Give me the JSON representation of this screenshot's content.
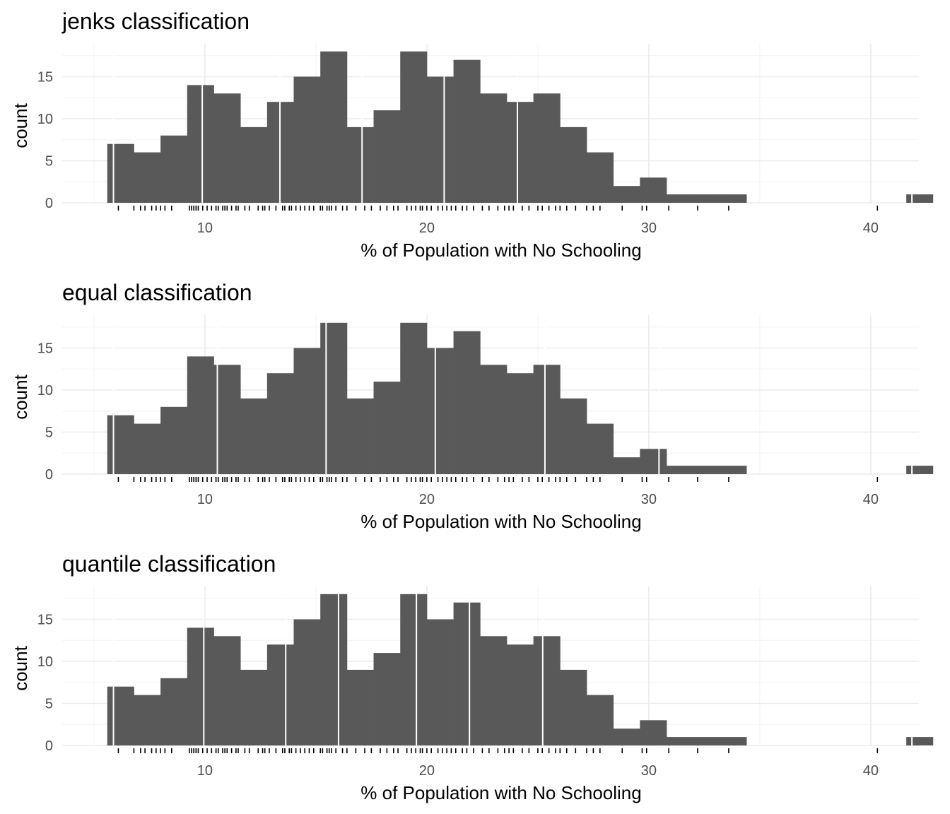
{
  "colors": {
    "bar_fill": "#595959",
    "break_line": "#ffffff",
    "grid_major": "#ebebeb",
    "grid_minor": "#f5f5f5",
    "rug": "#000000",
    "background": "#ffffff"
  },
  "chart_data": [
    {
      "type": "bar",
      "title": "jenks classification",
      "xlabel": "% of Population with No Schooling",
      "ylabel": "count",
      "xlim": [
        5.0,
        43.2
      ],
      "ylim": [
        0,
        18.3
      ],
      "xticks": [
        10,
        20,
        30,
        40
      ],
      "yticks": [
        0,
        5,
        10,
        15
      ],
      "x_tick_labels": [
        "10",
        "20",
        "30",
        "40"
      ],
      "y_tick_labels": [
        "0",
        "5",
        "10",
        "15"
      ],
      "grid": true,
      "legend": "none",
      "bin_width": 1.2,
      "bin_start": 5.6,
      "bin_counts": [
        7,
        6,
        8,
        14,
        13,
        9,
        12,
        15,
        18,
        9,
        11,
        18,
        15,
        17,
        13,
        12,
        13,
        9,
        6,
        2,
        3,
        1,
        1,
        1,
        0,
        0,
        0,
        0,
        0,
        0,
        1
      ],
      "first_bin_edge": 5.88,
      "class_breaks": [
        9.88,
        13.38,
        17.08,
        20.78,
        24.08
      ],
      "rug_ticks": [
        6.1,
        6.8,
        7.1,
        7.3,
        7.6,
        7.8,
        8.0,
        8.2,
        8.5,
        9.3,
        9.4,
        9.5,
        9.6,
        9.7,
        9.9,
        10.1,
        10.3,
        10.5,
        10.6,
        10.8,
        10.9,
        11.0,
        11.2,
        11.4,
        11.5,
        11.8,
        12.0,
        12.4,
        12.6,
        12.7,
        12.9,
        13.2,
        13.5,
        13.6,
        13.8,
        13.9,
        14.1,
        14.3,
        14.5,
        14.7,
        14.9,
        15.2,
        15.3,
        15.5,
        15.6,
        15.7,
        15.9,
        16.2,
        16.4,
        16.8,
        17.2,
        17.5,
        17.9,
        18.2,
        18.5,
        18.7,
        19.1,
        19.3,
        19.5,
        19.7,
        19.8,
        20.0,
        20.2,
        20.5,
        20.7,
        20.9,
        21.1,
        21.3,
        21.6,
        21.8,
        22.1,
        22.5,
        22.8,
        23.2,
        23.5,
        23.7,
        23.9,
        24.3,
        24.6,
        25.0,
        25.2,
        25.5,
        25.8,
        26.0,
        26.3,
        26.7,
        27.2,
        27.5,
        27.8,
        28.8,
        29.7,
        29.9,
        30.9,
        32.2,
        33.6,
        40.3
      ]
    },
    {
      "type": "bar",
      "title": "equal classification",
      "xlabel": "% of Population with No Schooling",
      "ylabel": "count",
      "xlim": [
        5.0,
        43.2
      ],
      "ylim": [
        0,
        18.3
      ],
      "xticks": [
        10,
        20,
        30,
        40
      ],
      "yticks": [
        0,
        5,
        10,
        15
      ],
      "x_tick_labels": [
        "10",
        "20",
        "30",
        "40"
      ],
      "y_tick_labels": [
        "0",
        "5",
        "10",
        "15"
      ],
      "grid": true,
      "legend": "none",
      "bin_width": 1.2,
      "bin_start": 5.6,
      "bin_counts": [
        7,
        6,
        8,
        14,
        13,
        9,
        12,
        15,
        18,
        9,
        11,
        18,
        15,
        17,
        13,
        12,
        13,
        9,
        6,
        2,
        3,
        1,
        1,
        1,
        0,
        0,
        0,
        0,
        0,
        0,
        1
      ],
      "first_bin_edge": 5.88,
      "class_breaks": [
        10.56,
        15.46,
        20.38,
        25.32,
        30.46
      ],
      "rug_ticks": [
        6.1,
        6.8,
        7.1,
        7.3,
        7.6,
        7.8,
        8.0,
        8.2,
        8.5,
        9.3,
        9.4,
        9.5,
        9.6,
        9.7,
        9.9,
        10.1,
        10.3,
        10.5,
        10.6,
        10.8,
        10.9,
        11.0,
        11.2,
        11.4,
        11.5,
        11.8,
        12.0,
        12.4,
        12.6,
        12.7,
        12.9,
        13.2,
        13.5,
        13.6,
        13.8,
        13.9,
        14.1,
        14.3,
        14.5,
        14.7,
        14.9,
        15.2,
        15.3,
        15.5,
        15.6,
        15.7,
        15.9,
        16.2,
        16.4,
        16.8,
        17.2,
        17.5,
        17.9,
        18.2,
        18.5,
        18.7,
        19.1,
        19.3,
        19.5,
        19.7,
        19.8,
        20.0,
        20.2,
        20.5,
        20.7,
        20.9,
        21.1,
        21.3,
        21.6,
        21.8,
        22.1,
        22.5,
        22.8,
        23.2,
        23.5,
        23.7,
        23.9,
        24.3,
        24.6,
        25.0,
        25.2,
        25.5,
        25.8,
        26.0,
        26.3,
        26.7,
        27.2,
        27.5,
        27.8,
        28.8,
        29.7,
        29.9,
        30.9,
        32.2,
        33.6,
        40.3
      ]
    },
    {
      "type": "bar",
      "title": "quantile classification",
      "xlabel": "% of Population with No Schooling",
      "ylabel": "count",
      "xlim": [
        5.0,
        43.2
      ],
      "ylim": [
        0,
        18.3
      ],
      "xticks": [
        10,
        20,
        30,
        40
      ],
      "yticks": [
        0,
        5,
        10,
        15
      ],
      "x_tick_labels": [
        "10",
        "20",
        "30",
        "40"
      ],
      "y_tick_labels": [
        "0",
        "5",
        "10",
        "15"
      ],
      "grid": true,
      "legend": "none",
      "bin_width": 1.2,
      "bin_start": 5.6,
      "bin_counts": [
        7,
        6,
        8,
        14,
        13,
        9,
        12,
        15,
        18,
        9,
        11,
        18,
        15,
        17,
        13,
        12,
        13,
        9,
        6,
        2,
        3,
        1,
        1,
        1,
        0,
        0,
        0,
        0,
        0,
        0,
        1
      ],
      "first_bin_edge": 5.88,
      "class_breaks": [
        9.95,
        13.64,
        16.02,
        19.53,
        21.92,
        25.22
      ],
      "rug_ticks": [
        6.1,
        6.8,
        7.1,
        7.3,
        7.6,
        7.8,
        8.0,
        8.2,
        8.5,
        9.3,
        9.4,
        9.5,
        9.6,
        9.7,
        9.9,
        10.1,
        10.3,
        10.5,
        10.6,
        10.8,
        10.9,
        11.0,
        11.2,
        11.4,
        11.5,
        11.8,
        12.0,
        12.4,
        12.6,
        12.7,
        12.9,
        13.2,
        13.5,
        13.6,
        13.8,
        13.9,
        14.1,
        14.3,
        14.5,
        14.7,
        14.9,
        15.2,
        15.3,
        15.5,
        15.6,
        15.7,
        15.9,
        16.2,
        16.4,
        16.8,
        17.2,
        17.5,
        17.9,
        18.2,
        18.5,
        18.7,
        19.1,
        19.3,
        19.5,
        19.7,
        19.8,
        20.0,
        20.2,
        20.5,
        20.7,
        20.9,
        21.1,
        21.3,
        21.6,
        21.8,
        22.1,
        22.5,
        22.8,
        23.2,
        23.5,
        23.7,
        23.9,
        24.3,
        24.6,
        25.0,
        25.2,
        25.5,
        25.8,
        26.0,
        26.3,
        26.7,
        27.2,
        27.5,
        27.8,
        28.8,
        29.7,
        29.9,
        30.9,
        32.2,
        33.6,
        40.3
      ]
    }
  ]
}
